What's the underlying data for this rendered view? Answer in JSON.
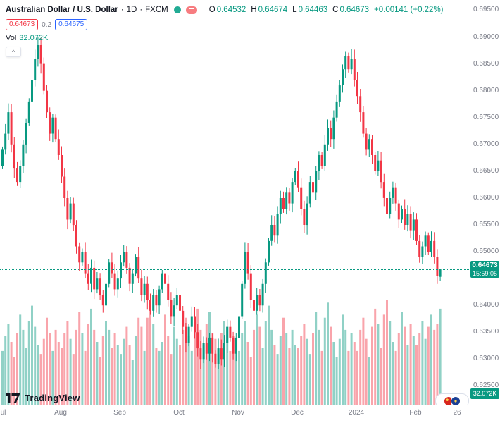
{
  "legend": {
    "symbol_title": "Australian Dollar / U.S. Dollar",
    "dot": "·",
    "interval": "1D",
    "exchange": "FXCM",
    "ohlc": {
      "o_label": "O",
      "o_value": "0.64532",
      "h_label": "H",
      "h_value": "0.64674",
      "l_label": "L",
      "l_value": "0.64463",
      "c_label": "C",
      "c_value": "0.64673",
      "change": "+0.00141 (+0.22%)"
    },
    "bid": "0.64673",
    "spread": "0.2",
    "ask": "0.64675",
    "vol_label": "Vol",
    "vol_value": "32.072K",
    "collapse_icon": "^"
  },
  "price_scale": {
    "tick_labels": [
      "0.69500",
      "0.69000",
      "0.68500",
      "0.68000",
      "0.67500",
      "0.67000",
      "0.66500",
      "0.66000",
      "0.65500",
      "0.65000",
      "0.64000",
      "0.63500",
      "0.63000",
      "0.62500"
    ],
    "current_price_label": "0.64673",
    "countdown": "15:59:05",
    "volume_axis_label": "32.072K"
  },
  "time_scale": {
    "ticks": [
      {
        "label": "Jul",
        "candle_index": 0
      },
      {
        "label": "Aug",
        "candle_index": 20
      },
      {
        "label": "Sep",
        "candle_index": 40
      },
      {
        "label": "Oct",
        "candle_index": 60
      },
      {
        "label": "Nov",
        "candle_index": 80
      },
      {
        "label": "Dec",
        "candle_index": 100
      },
      {
        "label": "2024",
        "candle_index": 120
      },
      {
        "label": "Feb",
        "candle_index": 140
      },
      {
        "label": "26",
        "candle_index": 154
      }
    ]
  },
  "watermark": {
    "text": "TradingView"
  },
  "colors": {
    "up": "#089981",
    "down": "#F23645",
    "bid": "#F23645",
    "ask": "#2962FF",
    "accent": "#089981",
    "axis_text": "#787B86",
    "text": "#131722",
    "vol_up": "rgba(8,153,129,0.45)",
    "vol_down": "rgba(242,54,69,0.45)",
    "label_bg": "#089981"
  },
  "chart_data": {
    "type": "candlestick",
    "title": "Australian Dollar / U.S. Dollar",
    "interval": "1D",
    "exchange": "FXCM",
    "legend_note": "volume overlay at bottom, price axis right, no gridlines",
    "price_axis_range_visible": [
      0.6213,
      0.6969
    ],
    "current_price": 0.64673,
    "last_candle": {
      "open": 0.64532,
      "high": 0.64674,
      "low": 0.64463,
      "close": 0.64673
    },
    "first_open": 0.666,
    "closes": [
      0.669,
      0.672,
      0.676,
      0.67,
      0.6655,
      0.663,
      0.666,
      0.67,
      0.674,
      0.678,
      0.682,
      0.686,
      0.6885,
      0.685,
      0.68,
      0.676,
      0.672,
      0.675,
      0.671,
      0.668,
      0.664,
      0.66,
      0.656,
      0.659,
      0.655,
      0.651,
      0.648,
      0.65,
      0.646,
      0.644,
      0.647,
      0.643,
      0.645,
      0.642,
      0.64,
      0.644,
      0.648,
      0.646,
      0.643,
      0.645,
      0.648,
      0.65,
      0.647,
      0.644,
      0.646,
      0.649,
      0.645,
      0.642,
      0.644,
      0.641,
      0.639,
      0.642,
      0.64,
      0.643,
      0.646,
      0.644,
      0.641,
      0.638,
      0.64,
      0.642,
      0.639,
      0.636,
      0.633,
      0.636,
      0.638,
      0.635,
      0.632,
      0.63,
      0.633,
      0.631,
      0.634,
      0.631,
      0.629,
      0.632,
      0.63,
      0.633,
      0.636,
      0.634,
      0.631,
      0.634,
      0.638,
      0.644,
      0.65,
      0.646,
      0.641,
      0.639,
      0.642,
      0.64,
      0.644,
      0.648,
      0.652,
      0.655,
      0.653,
      0.657,
      0.66,
      0.658,
      0.661,
      0.659,
      0.663,
      0.665,
      0.662,
      0.658,
      0.655,
      0.659,
      0.663,
      0.661,
      0.665,
      0.668,
      0.666,
      0.67,
      0.673,
      0.671,
      0.675,
      0.678,
      0.681,
      0.684,
      0.6865,
      0.684,
      0.686,
      0.682,
      0.679,
      0.676,
      0.672,
      0.669,
      0.671,
      0.668,
      0.665,
      0.667,
      0.663,
      0.66,
      0.657,
      0.66,
      0.662,
      0.659,
      0.656,
      0.658,
      0.655,
      0.657,
      0.654,
      0.656,
      0.652,
      0.649,
      0.651,
      0.653,
      0.65,
      0.652,
      0.649,
      0.6455,
      0.64673
    ],
    "volumes_k": [
      18,
      23,
      27,
      21,
      16,
      24,
      30,
      25,
      19,
      28,
      33,
      26,
      20,
      17,
      22,
      29,
      24,
      18,
      25,
      21,
      19,
      24,
      28,
      22,
      17,
      25,
      31,
      24,
      18,
      27,
      32,
      25,
      21,
      16,
      23,
      28,
      25,
      19,
      24,
      20,
      17,
      22,
      26,
      20,
      15,
      23,
      29,
      26,
      18,
      29,
      34,
      27,
      19,
      18,
      21,
      30,
      23,
      17,
      26,
      22,
      20,
      25,
      29,
      23,
      18,
      26,
      32,
      25,
      20,
      27,
      31,
      24,
      22,
      17,
      24,
      28,
      26,
      18,
      23,
      19,
      18,
      24,
      28,
      21,
      16,
      25,
      30,
      26,
      19,
      28,
      33,
      25,
      20,
      17,
      23,
      29,
      24,
      19,
      25,
      20,
      19,
      23,
      27,
      22,
      17,
      24,
      31,
      25,
      18,
      29,
      34,
      26,
      21,
      16,
      22,
      30,
      25,
      18,
      24,
      21,
      18,
      25,
      29,
      22,
      16,
      26,
      32,
      27,
      19,
      30,
      35,
      28,
      21,
      18,
      24,
      31,
      26,
      20,
      27,
      23,
      20,
      24,
      28,
      22,
      26,
      30,
      25,
      27,
      32
    ],
    "last_volume_label": "32.072K"
  }
}
